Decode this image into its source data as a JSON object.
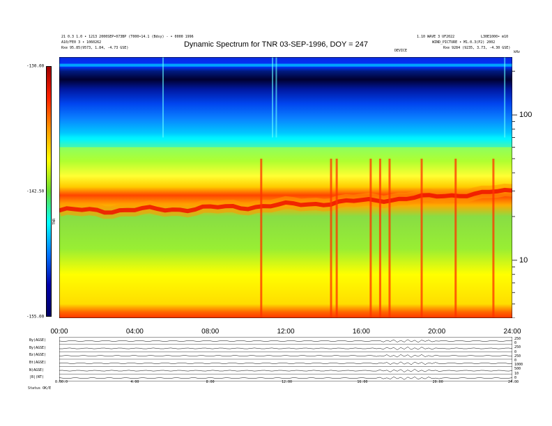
{
  "header": {
    "left_line1": "21 0.3 1.0 • 1213 2000SEP•073BP (T000•14.1 (Bdsy) - • 0000 1996",
    "left_line2": "A10/FE0 3 • 1060262",
    "left_line3": "Rxe   95.85(9573, 1.84, -4.73 GSE)",
    "right_line1": "1.10 WAVE 3 UF2022",
    "right_line2": "L30E1000• m10",
    "right_line3": "WIND_PICTURE • M1.0.3(P2) 2002",
    "right_line4": "Rxe   9284 (9235, 3.73, -4.30 GSE)",
    "mid_label": "DEVICE",
    "corner_label": "kHz"
  },
  "colorbar": {
    "label": "TNR",
    "ticks": [
      "-130.00",
      "-142.50",
      "-155.00"
    ]
  },
  "bottom_panel": {
    "row_labels": [
      "By(AGSE)",
      "By(AGSE)",
      "Bz(AGSE)",
      "Bt(AGSE)",
      "N(AGSE)",
      "|B|(NT)"
    ],
    "right_ticks": [
      "250",
      "0",
      "250",
      "0",
      "250",
      "0",
      "1000",
      "500",
      "10",
      "0"
    ],
    "x_ticks": [
      "0:00:0",
      "4:00",
      "8:00",
      "12:00",
      "16:00",
      "20:00",
      "24:00"
    ],
    "footer_label": "Status   OK/E"
  },
  "chart_data": {
    "type": "heatmap",
    "title": "Dynamic Spectrum for TNR 03-SEP-1996, DOY = 247",
    "xlabel": "",
    "ylabel": "kHz",
    "x_ticks": [
      "00:00",
      "04:00",
      "08:00",
      "12:00",
      "16:00",
      "20:00",
      "24:00"
    ],
    "x_range_hours": [
      0,
      24
    ],
    "y_scale": "log",
    "y_range_khz": [
      4,
      250
    ],
    "y_ticks": [
      10,
      100
    ],
    "color_range": [
      -155.0,
      -130.0
    ],
    "colormap": [
      "#a00000",
      "#ff2200",
      "#ff9900",
      "#ffff00",
      "#66dd33",
      "#00ffff",
      "#0077ff",
      "#0000aa",
      "#000066"
    ],
    "features": {
      "plasma_line_khz_start": 22,
      "plasma_line_khz_end": 30,
      "cyan_band_khz": [
        60,
        70
      ],
      "dark_band_khz": [
        160,
        210
      ],
      "bursts_hours": [
        10.7,
        14.4,
        14.7,
        16.5,
        17.0,
        17.5,
        19.2,
        21.0,
        23.0
      ]
    }
  }
}
